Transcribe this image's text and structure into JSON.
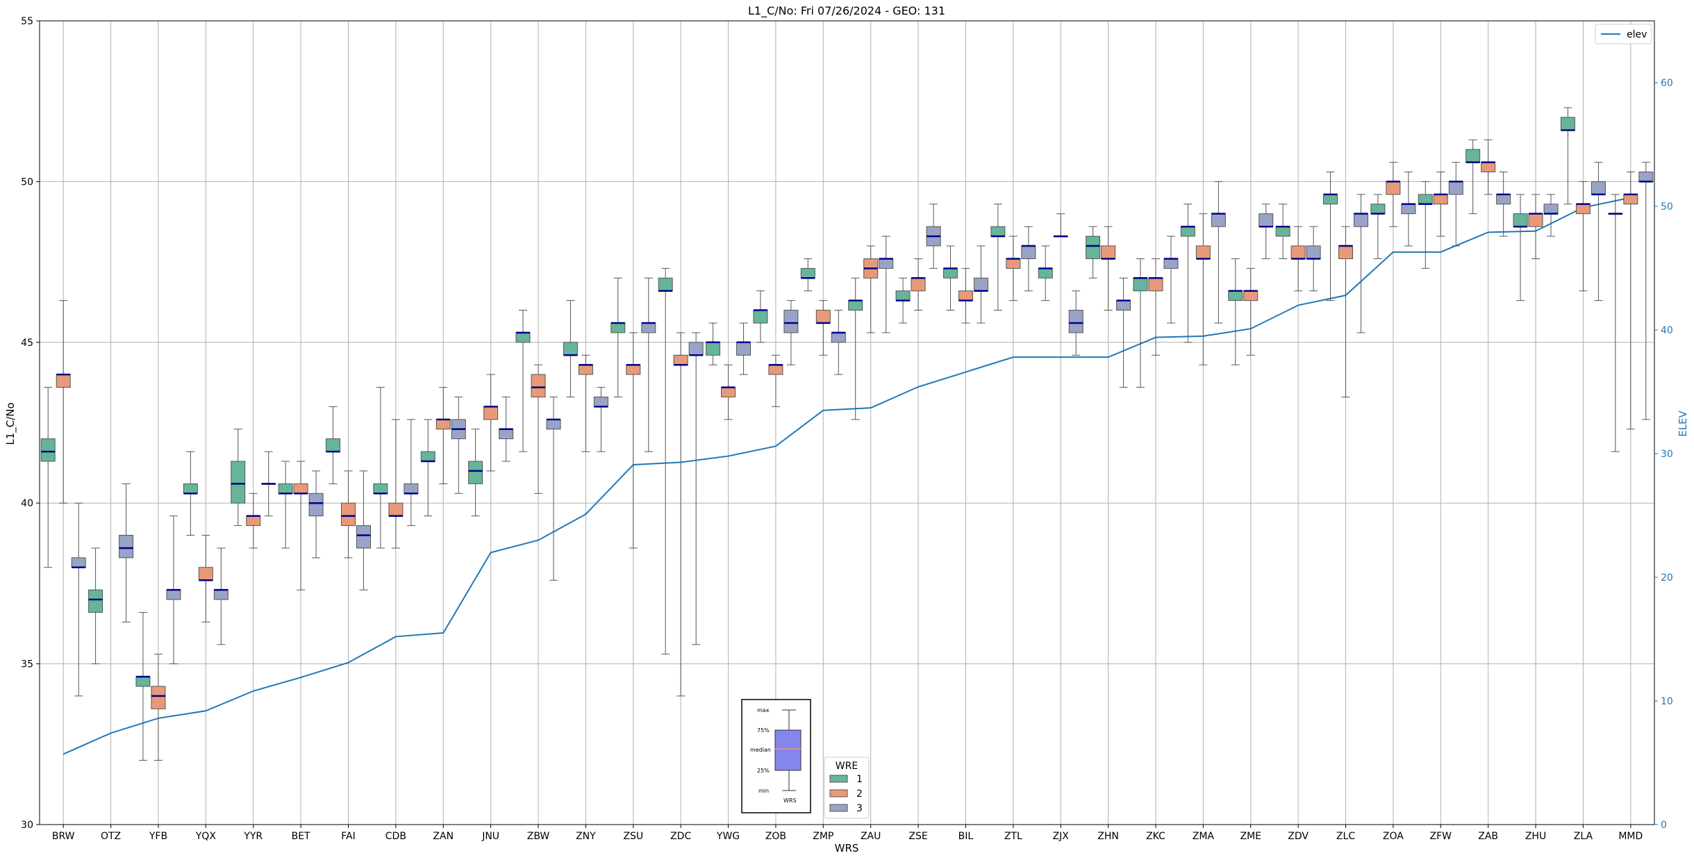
{
  "chart_data": {
    "type": "box",
    "title": "L1_C/No: Fri 07/26/2024 - GEO: 131",
    "xlabel": "WRS",
    "ylabel": "L1_C/No",
    "ylim": [
      30,
      55
    ],
    "yticks": [
      30,
      35,
      40,
      45,
      50,
      55
    ],
    "y2label": "ELEV",
    "y2lim": [
      0,
      65
    ],
    "y2ticks": [
      0,
      10,
      20,
      30,
      40,
      50,
      60
    ],
    "grid": true,
    "categories": [
      "BRW",
      "OTZ",
      "YFB",
      "YQX",
      "YYR",
      "BET",
      "FAI",
      "CDB",
      "ZAN",
      "JNU",
      "ZBW",
      "ZNY",
      "ZSU",
      "ZDC",
      "YWG",
      "ZOB",
      "ZMP",
      "ZAU",
      "ZSE",
      "BIL",
      "ZTL",
      "ZJX",
      "ZHN",
      "ZKC",
      "ZMA",
      "ZME",
      "ZDV",
      "ZLC",
      "ZOA",
      "ZFW",
      "ZAB",
      "ZHU",
      "ZLA",
      "MMD"
    ],
    "series_colors": {
      "1": "#66b59a",
      "2": "#e89a78",
      "3": "#99a3c6"
    },
    "median_color": "#00008b",
    "elev_color": "#1f77b4",
    "elevation": {
      "name": "elev",
      "values": [
        5.7,
        7.4,
        8.6,
        9.2,
        10.8,
        11.9,
        13.1,
        15.2,
        15.5,
        22.0,
        23.0,
        25.1,
        29.1,
        29.3,
        29.8,
        30.6,
        33.5,
        33.7,
        35.4,
        36.6,
        37.8,
        37.8,
        37.8,
        39.4,
        39.5,
        40.1,
        42.0,
        42.8,
        46.3,
        46.3,
        47.9,
        48.0,
        49.9,
        50.7
      ]
    },
    "series": [
      {
        "name": "1",
        "boxes": [
          [
            "BRW",
            38.0,
            41.3,
            41.6,
            42.0,
            43.6
          ],
          [
            "OTZ",
            35.0,
            36.6,
            37.0,
            37.3,
            38.6
          ],
          [
            "YFB",
            32.0,
            34.3,
            34.6,
            34.6,
            36.6
          ],
          [
            "YQX",
            39.0,
            40.3,
            40.3,
            40.6,
            41.6
          ],
          [
            "YYR",
            39.3,
            40.0,
            40.6,
            41.3,
            42.3
          ],
          [
            "BET",
            38.6,
            40.3,
            40.3,
            40.6,
            41.3
          ],
          [
            "FAI",
            40.6,
            41.6,
            41.6,
            42.0,
            43.0
          ],
          [
            "CDB",
            38.6,
            40.3,
            40.3,
            40.6,
            43.6
          ],
          [
            "ZAN",
            39.6,
            41.3,
            41.3,
            41.6,
            42.6
          ],
          [
            "JNU",
            39.6,
            40.6,
            41.0,
            41.3,
            42.3
          ],
          [
            "ZBW",
            41.6,
            45.0,
            45.3,
            45.3,
            46.0
          ],
          [
            "ZNY",
            43.3,
            44.6,
            44.6,
            45.0,
            46.3
          ],
          [
            "ZSU",
            43.3,
            45.3,
            45.6,
            45.6,
            47.0
          ],
          [
            "ZDC",
            35.3,
            46.6,
            46.6,
            47.0,
            47.3
          ],
          [
            "YWG",
            44.3,
            44.6,
            45.0,
            45.0,
            45.6
          ],
          [
            "ZOB",
            45.0,
            45.6,
            46.0,
            46.0,
            46.6
          ],
          [
            "ZMP",
            46.6,
            47.0,
            47.0,
            47.3,
            47.6
          ],
          [
            "ZAU",
            42.6,
            46.0,
            46.3,
            46.3,
            47.0
          ],
          [
            "ZSE",
            45.6,
            46.3,
            46.3,
            46.6,
            47.0
          ],
          [
            "BIL",
            46.0,
            47.0,
            47.3,
            47.3,
            48.0
          ],
          [
            "ZTL",
            46.0,
            48.3,
            48.3,
            48.6,
            49.3
          ],
          [
            "ZJX",
            46.3,
            47.0,
            47.3,
            47.3,
            48.0
          ],
          [
            "ZHN",
            47.0,
            47.6,
            48.0,
            48.3,
            48.6
          ],
          [
            "ZKC",
            43.6,
            46.6,
            47.0,
            47.0,
            47.6
          ],
          [
            "ZMA",
            45.0,
            48.3,
            48.6,
            48.6,
            49.3
          ],
          [
            "ZME",
            44.3,
            46.3,
            46.6,
            46.6,
            47.6
          ],
          [
            "ZDV",
            47.6,
            48.3,
            48.6,
            48.6,
            49.3
          ],
          [
            "ZLC",
            46.3,
            49.3,
            49.6,
            49.6,
            50.3
          ],
          [
            "ZOA",
            47.6,
            49.0,
            49.0,
            49.3,
            49.6
          ],
          [
            "ZFW",
            47.3,
            49.3,
            49.3,
            49.6,
            50.0
          ],
          [
            "ZAB",
            49.0,
            50.6,
            50.6,
            51.0,
            51.3
          ],
          [
            "ZHU",
            46.3,
            48.6,
            48.6,
            49.0,
            49.6
          ],
          [
            "ZLA",
            49.3,
            51.6,
            51.6,
            52.0,
            52.3
          ],
          [
            "MMD",
            41.6,
            49.0,
            49.0,
            49.0,
            49.6
          ]
        ]
      },
      {
        "name": "2",
        "boxes": [
          [
            "BRW",
            40.0,
            43.6,
            44.0,
            44.0,
            46.3
          ],
          [
            "YFB",
            32.0,
            33.6,
            34.0,
            34.3,
            35.3
          ],
          [
            "YQX",
            36.3,
            37.6,
            37.6,
            38.0,
            39.0
          ],
          [
            "YYR",
            38.6,
            39.3,
            39.6,
            39.6,
            40.3
          ],
          [
            "BET",
            37.3,
            40.3,
            40.3,
            40.6,
            41.3
          ],
          [
            "FAI",
            38.3,
            39.3,
            39.6,
            40.0,
            41.0
          ],
          [
            "CDB",
            38.6,
            39.6,
            39.6,
            40.0,
            42.6
          ],
          [
            "ZAN",
            40.6,
            42.3,
            42.6,
            42.6,
            43.6
          ],
          [
            "JNU",
            41.0,
            42.6,
            43.0,
            43.0,
            44.0
          ],
          [
            "ZBW",
            40.3,
            43.3,
            43.6,
            44.0,
            44.3
          ],
          [
            "ZNY",
            41.6,
            44.0,
            44.3,
            44.3,
            44.6
          ],
          [
            "ZSU",
            38.6,
            44.0,
            44.3,
            44.3,
            45.3
          ],
          [
            "ZDC",
            34.0,
            44.3,
            44.3,
            44.6,
            45.3
          ],
          [
            "YWG",
            42.6,
            43.3,
            43.6,
            43.6,
            44.3
          ],
          [
            "ZOB",
            43.0,
            44.0,
            44.3,
            44.3,
            44.6
          ],
          [
            "ZMP",
            44.6,
            45.6,
            45.6,
            46.0,
            46.3
          ],
          [
            "ZAU",
            45.3,
            47.0,
            47.3,
            47.6,
            48.0
          ],
          [
            "ZSE",
            46.0,
            46.6,
            47.0,
            47.0,
            47.6
          ],
          [
            "BIL",
            45.6,
            46.3,
            46.3,
            46.6,
            47.3
          ],
          [
            "ZTL",
            46.3,
            47.3,
            47.6,
            47.6,
            48.3
          ],
          [
            "ZJX",
            48.3,
            48.3,
            48.3,
            48.3,
            49.0
          ],
          [
            "ZHN",
            46.0,
            47.6,
            47.6,
            48.0,
            48.6
          ],
          [
            "ZKC",
            44.6,
            46.6,
            47.0,
            47.0,
            47.6
          ],
          [
            "ZMA",
            44.3,
            47.6,
            47.6,
            48.0,
            49.0
          ],
          [
            "ZME",
            44.6,
            46.3,
            46.6,
            46.6,
            47.3
          ],
          [
            "ZDV",
            46.6,
            47.6,
            47.6,
            48.0,
            48.6
          ],
          [
            "ZLC",
            43.3,
            47.6,
            48.0,
            48.0,
            48.6
          ],
          [
            "ZOA",
            48.6,
            49.6,
            50.0,
            50.0,
            50.6
          ],
          [
            "ZFW",
            48.3,
            49.3,
            49.6,
            49.6,
            50.3
          ],
          [
            "ZAB",
            49.6,
            50.3,
            50.6,
            50.6,
            51.3
          ],
          [
            "ZHU",
            47.6,
            48.6,
            49.0,
            49.0,
            49.6
          ],
          [
            "ZLA",
            46.6,
            49.0,
            49.3,
            49.3,
            50.0
          ],
          [
            "MMD",
            42.3,
            49.3,
            49.6,
            49.6,
            50.3
          ]
        ]
      },
      {
        "name": "3",
        "boxes": [
          [
            "BRW",
            34.0,
            38.0,
            38.0,
            38.3,
            40.0
          ],
          [
            "OTZ",
            36.3,
            38.3,
            38.6,
            39.0,
            40.6
          ],
          [
            "YFB",
            35.0,
            37.0,
            37.3,
            37.3,
            39.6
          ],
          [
            "YQX",
            35.6,
            37.0,
            37.3,
            37.3,
            38.6
          ],
          [
            "YYR",
            39.6,
            40.6,
            40.6,
            40.6,
            41.6
          ],
          [
            "BET",
            38.3,
            39.6,
            40.0,
            40.3,
            41.0
          ],
          [
            "FAI",
            37.3,
            38.6,
            39.0,
            39.3,
            41.0
          ],
          [
            "CDB",
            39.3,
            40.3,
            40.3,
            40.6,
            42.6
          ],
          [
            "ZAN",
            40.3,
            42.0,
            42.3,
            42.6,
            43.3
          ],
          [
            "JNU",
            41.3,
            42.0,
            42.3,
            42.3,
            43.3
          ],
          [
            "ZBW",
            37.6,
            42.3,
            42.6,
            42.6,
            43.3
          ],
          [
            "ZNY",
            41.6,
            43.0,
            43.0,
            43.3,
            43.6
          ],
          [
            "ZSU",
            41.6,
            45.3,
            45.6,
            45.6,
            47.0
          ],
          [
            "ZDC",
            35.6,
            44.6,
            44.6,
            45.0,
            45.3
          ],
          [
            "YWG",
            44.0,
            44.6,
            45.0,
            45.0,
            45.6
          ],
          [
            "ZOB",
            44.3,
            45.3,
            45.6,
            46.0,
            46.3
          ],
          [
            "ZMP",
            44.0,
            45.0,
            45.3,
            45.3,
            46.0
          ],
          [
            "ZAU",
            45.3,
            47.3,
            47.6,
            47.6,
            48.3
          ],
          [
            "ZSE",
            47.3,
            48.0,
            48.3,
            48.6,
            49.3
          ],
          [
            "BIL",
            45.6,
            46.6,
            46.6,
            47.0,
            48.0
          ],
          [
            "ZTL",
            46.6,
            47.6,
            48.0,
            48.0,
            48.6
          ],
          [
            "ZJX",
            44.6,
            45.3,
            45.6,
            46.0,
            46.6
          ],
          [
            "ZHN",
            43.6,
            46.0,
            46.3,
            46.3,
            47.0
          ],
          [
            "ZKC",
            45.6,
            47.3,
            47.6,
            47.6,
            48.3
          ],
          [
            "ZMA",
            45.6,
            48.6,
            49.0,
            49.0,
            50.0
          ],
          [
            "ZME",
            47.6,
            48.6,
            48.6,
            49.0,
            49.3
          ],
          [
            "ZDV",
            46.6,
            47.6,
            47.6,
            48.0,
            48.6
          ],
          [
            "ZLC",
            45.3,
            48.6,
            49.0,
            49.0,
            49.6
          ],
          [
            "ZOA",
            48.0,
            49.0,
            49.3,
            49.3,
            50.3
          ],
          [
            "ZFW",
            48.0,
            49.6,
            50.0,
            50.0,
            50.6
          ],
          [
            "ZAB",
            48.3,
            49.3,
            49.6,
            49.6,
            50.3
          ],
          [
            "ZHU",
            48.3,
            49.0,
            49.0,
            49.3,
            49.6
          ],
          [
            "ZLA",
            46.3,
            49.6,
            49.6,
            50.0,
            50.6
          ],
          [
            "MMD",
            42.6,
            50.0,
            50.0,
            50.3,
            50.6
          ]
        ]
      }
    ],
    "legend_top_right": {
      "label": "elev"
    },
    "legend_group": {
      "title": "WRE",
      "items": [
        "1",
        "2",
        "3"
      ]
    },
    "key_inset": {
      "labels": [
        "max",
        "75%",
        "median",
        "25%",
        "min"
      ],
      "caption": "WRS"
    }
  }
}
